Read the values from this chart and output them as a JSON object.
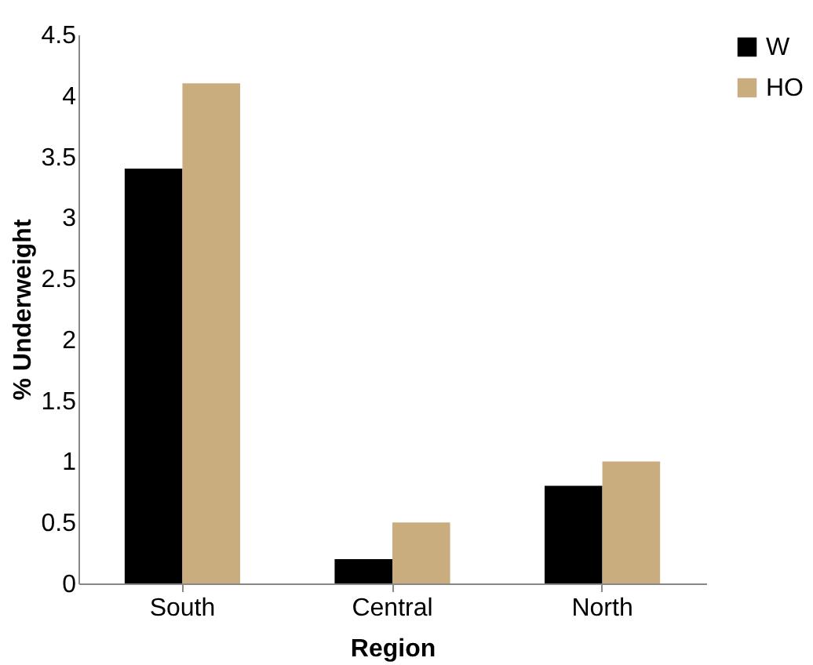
{
  "chart_data": {
    "type": "bar",
    "xlabel": "Region",
    "ylabel": "% Underweight",
    "categories": [
      "South",
      "Central",
      "North"
    ],
    "series": [
      {
        "name": "W",
        "color": "#000000",
        "values": [
          3.4,
          0.2,
          0.8
        ]
      },
      {
        "name": "HO",
        "color": "#c9ad7e",
        "values": [
          4.1,
          0.5,
          1.0
        ]
      }
    ],
    "ylim": [
      0,
      4.5
    ],
    "yticks": [
      0,
      0.5,
      1,
      1.5,
      2,
      2.5,
      3,
      3.5,
      4,
      4.5
    ],
    "grid": false,
    "legend": "right"
  }
}
